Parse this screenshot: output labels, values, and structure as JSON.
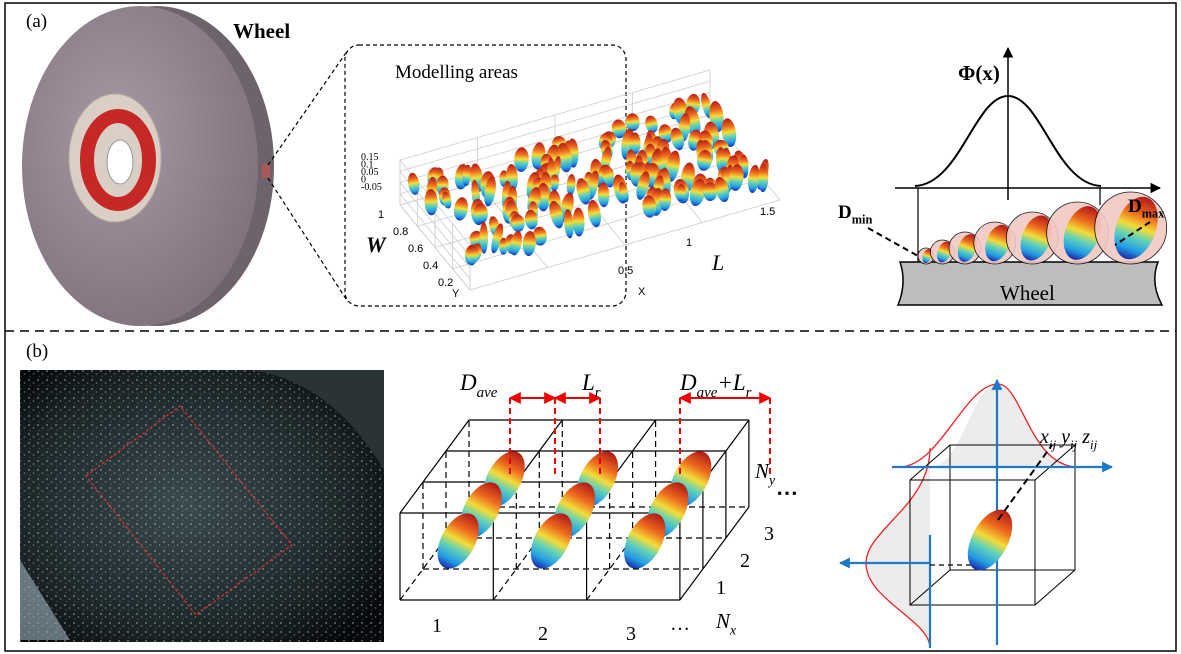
{
  "panel_a": {
    "label": "(a)",
    "wheel_label": "Wheel",
    "inset": {
      "title": "Modelling areas",
      "z_ticks": [
        "0.15",
        "0.1",
        "0.05",
        "0",
        "-0.05"
      ],
      "y_ticks": [
        "1",
        "0.8",
        "0.6",
        "0.4",
        "0.2"
      ],
      "x_ticks": [
        "0.5",
        "1",
        "1.5"
      ],
      "x_axis": "X",
      "y_axis": "Y",
      "w_label": "W",
      "l_label": "L"
    },
    "distribution": {
      "phi_label": "Φ(x)",
      "d_min": {
        "symbol": "D",
        "sub": "min"
      },
      "d_max": {
        "symbol": "D",
        "sub": "max"
      },
      "wheel_label": "Wheel"
    }
  },
  "panel_b": {
    "label": "(b)",
    "d_ave": {
      "symbol": "D",
      "sub": "ave"
    },
    "l_r": {
      "symbol": "L",
      "sub": "r"
    },
    "d_ave_plus_l_r": {
      "symbol": "D",
      "sub": "ave",
      "plus": "+L",
      "sub2": "r"
    },
    "n_y": {
      "symbol": "N",
      "sub": "y"
    },
    "n_y_dots": "⋯",
    "depth_labels": [
      "3",
      "2",
      "1"
    ],
    "x_labels": [
      "1",
      "2",
      "3"
    ],
    "x_dots": "…",
    "n_x": {
      "symbol": "N",
      "sub": "x"
    },
    "coordinate": {
      "x": "x",
      "xs": "ij",
      "y": " y",
      "ys": "ij",
      "z": " z",
      "zs": "ij"
    }
  }
}
